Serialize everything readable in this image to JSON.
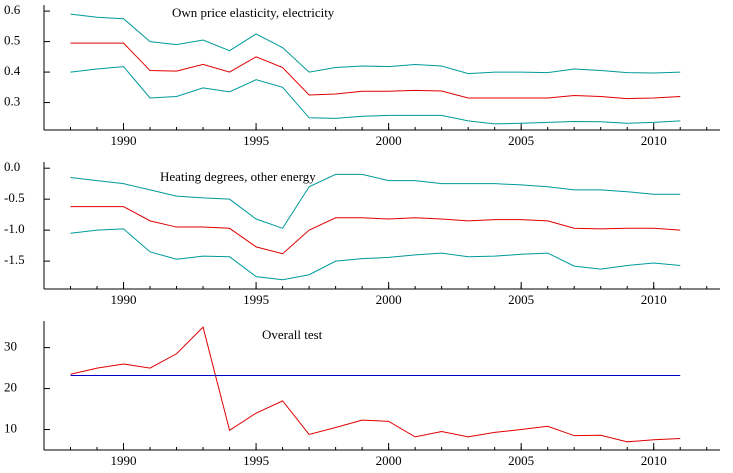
{
  "chart_data": [
    {
      "type": "line",
      "title": "Own price elasticity, electricity",
      "x": [
        1988,
        1989,
        1990,
        1991,
        1992,
        1993,
        1994,
        1995,
        1996,
        1997,
        1998,
        1999,
        2000,
        2001,
        2002,
        2003,
        2004,
        2005,
        2006,
        2007,
        2008,
        2009,
        2010,
        2011
      ],
      "xlim": [
        1987,
        2012.5
      ],
      "xticks": [
        1990,
        1995,
        2000,
        2005,
        2010
      ],
      "ylim": [
        0.21,
        0.62
      ],
      "yticks": [
        0.3,
        0.4,
        0.5,
        0.6
      ],
      "series": [
        {
          "color": "#009a9a",
          "values": [
            0.59,
            0.58,
            0.575,
            0.5,
            0.49,
            0.505,
            0.47,
            0.525,
            0.48,
            0.4,
            0.415,
            0.42,
            0.418,
            0.425,
            0.42,
            0.395,
            0.4,
            0.4,
            0.398,
            0.41,
            0.405,
            0.398,
            0.397,
            0.4
          ]
        },
        {
          "color": "#e00000",
          "values": [
            0.495,
            0.495,
            0.495,
            0.405,
            0.403,
            0.425,
            0.4,
            0.45,
            0.415,
            0.325,
            0.328,
            0.337,
            0.337,
            0.34,
            0.338,
            0.315,
            0.315,
            0.315,
            0.315,
            0.323,
            0.32,
            0.313,
            0.315,
            0.32
          ]
        },
        {
          "color": "#009a9a",
          "values": [
            0.4,
            0.41,
            0.418,
            0.315,
            0.32,
            0.348,
            0.335,
            0.375,
            0.35,
            0.25,
            0.248,
            0.255,
            0.258,
            0.258,
            0.258,
            0.24,
            0.23,
            0.232,
            0.235,
            0.238,
            0.237,
            0.232,
            0.235,
            0.24
          ]
        }
      ]
    },
    {
      "type": "line",
      "title": "Heating degrees, other energy",
      "x": [
        1988,
        1989,
        1990,
        1991,
        1992,
        1993,
        1994,
        1995,
        1996,
        1997,
        1998,
        1999,
        2000,
        2001,
        2002,
        2003,
        2004,
        2005,
        2006,
        2007,
        2008,
        2009,
        2010,
        2011
      ],
      "xlim": [
        1987,
        2012.5
      ],
      "xticks": [
        1990,
        1995,
        2000,
        2005,
        2010
      ],
      "ylim": [
        -1.95,
        0.1
      ],
      "yticks": [
        {
          "value": 0,
          "label": "0.0"
        },
        -0.5,
        {
          "value": -1,
          "label": "-1.0"
        },
        -1.5
      ],
      "series": [
        {
          "color": "#009a9a",
          "values": [
            -0.15,
            -0.2,
            -0.25,
            -0.35,
            -0.45,
            -0.48,
            -0.5,
            -0.82,
            -0.97,
            -0.3,
            -0.1,
            -0.1,
            -0.2,
            -0.2,
            -0.25,
            -0.25,
            -0.25,
            -0.27,
            -0.3,
            -0.35,
            -0.35,
            -0.38,
            -0.42,
            -0.42
          ]
        },
        {
          "color": "#e00000",
          "values": [
            -0.62,
            -0.62,
            -0.62,
            -0.85,
            -0.95,
            -0.95,
            -0.97,
            -1.27,
            -1.38,
            -1.0,
            -0.8,
            -0.8,
            -0.82,
            -0.8,
            -0.82,
            -0.85,
            -0.83,
            -0.83,
            -0.85,
            -0.97,
            -0.98,
            -0.97,
            -0.97,
            -1.0
          ]
        },
        {
          "color": "#009a9a",
          "values": [
            -1.05,
            -1.0,
            -0.98,
            -1.35,
            -1.47,
            -1.42,
            -1.43,
            -1.75,
            -1.8,
            -1.72,
            -1.5,
            -1.46,
            -1.44,
            -1.4,
            -1.37,
            -1.43,
            -1.42,
            -1.39,
            -1.37,
            -1.58,
            -1.63,
            -1.57,
            -1.53,
            -1.57
          ]
        }
      ]
    },
    {
      "type": "line",
      "title": "Overall test",
      "x": [
        1988,
        1989,
        1990,
        1991,
        1992,
        1993,
        1994,
        1995,
        1996,
        1997,
        1998,
        1999,
        2000,
        2001,
        2002,
        2003,
        2004,
        2005,
        2006,
        2007,
        2008,
        2009,
        2010,
        2011
      ],
      "xlim": [
        1987,
        2012.5
      ],
      "xticks": [
        1990,
        1995,
        2000,
        2005,
        2010
      ],
      "ylim": [
        5,
        36.5
      ],
      "yticks": [
        10,
        20,
        30
      ],
      "series": [
        {
          "color": "#e00000",
          "values": [
            23.5,
            25,
            26,
            25,
            28.5,
            35,
            9.8,
            14,
            17,
            8.8,
            10.5,
            12.3,
            12,
            8.2,
            9.5,
            8.2,
            9.3,
            10,
            10.8,
            8.5,
            8.6,
            7,
            7.5,
            7.8
          ]
        },
        {
          "color": "#0000cc",
          "values": [
            23.2,
            23.2,
            23.2,
            23.2,
            23.2,
            23.2,
            23.2,
            23.2,
            23.2,
            23.2,
            23.2,
            23.2,
            23.2,
            23.2,
            23.2,
            23.2,
            23.2,
            23.2,
            23.2,
            23.2,
            23.2,
            23.2,
            23.2,
            23.2
          ]
        }
      ]
    }
  ]
}
